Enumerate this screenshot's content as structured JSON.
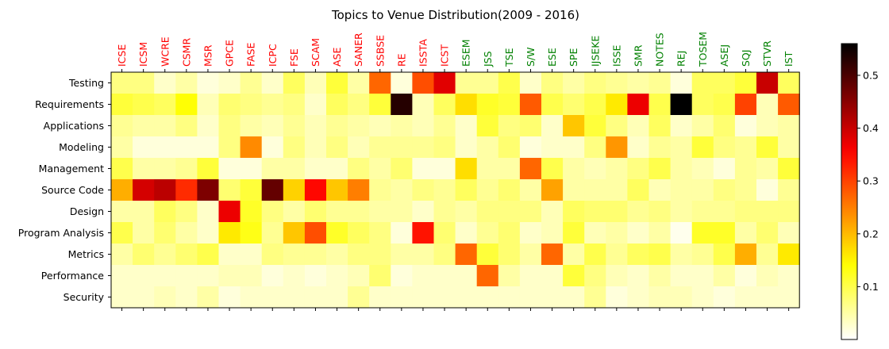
{
  "chart_data": {
    "type": "heatmap",
    "title": "Topics to Venue Distribution(2009 - 2016)",
    "columns": [
      "ICSE",
      "ICSM",
      "WCRE",
      "CSMR",
      "MSR",
      "GPCE",
      "FASE",
      "ICPC",
      "FSE",
      "SCAM",
      "ASE",
      "SANER",
      "SSBSE",
      "RE",
      "ISSTA",
      "ICST",
      "ESEM",
      "JSS",
      "TSE",
      "S/W",
      "ESE",
      "SPE",
      "IJSEKE",
      "ISSE",
      "SMR",
      "NOTES",
      "REJ",
      "TOSEM",
      "ASEJ",
      "SQJ",
      "STVR",
      "IST"
    ],
    "column_colors": [
      "#ff0000",
      "#ff0000",
      "#ff0000",
      "#ff0000",
      "#ff0000",
      "#ff0000",
      "#ff0000",
      "#ff0000",
      "#ff0000",
      "#ff0000",
      "#ff0000",
      "#ff0000",
      "#ff0000",
      "#ff0000",
      "#ff0000",
      "#ff0000",
      "#008000",
      "#008000",
      "#008000",
      "#008000",
      "#008000",
      "#008000",
      "#008000",
      "#008000",
      "#008000",
      "#008000",
      "#008000",
      "#008000",
      "#008000",
      "#008000",
      "#008000",
      "#008000"
    ],
    "rows": [
      "Testing",
      "Requirements",
      "Applications",
      "Modeling",
      "Management",
      "Source Code",
      "Design",
      "Program Analysis",
      "Metrics",
      "Performance",
      "Security"
    ],
    "values": [
      [
        0.07,
        0.07,
        0.03,
        0.05,
        0.02,
        0.03,
        0.06,
        0.03,
        0.09,
        0.04,
        0.11,
        0.05,
        0.27,
        0.02,
        0.29,
        0.38,
        0.06,
        0.06,
        0.1,
        0.03,
        0.07,
        0.05,
        0.07,
        0.06,
        0.05,
        0.06,
        0.02,
        0.09,
        0.09,
        0.11,
        0.4,
        0.09
      ],
      [
        0.11,
        0.1,
        0.09,
        0.14,
        0.04,
        0.08,
        0.07,
        0.06,
        0.07,
        0.03,
        0.09,
        0.07,
        0.11,
        0.53,
        0.04,
        0.09,
        0.17,
        0.12,
        0.11,
        0.28,
        0.1,
        0.08,
        0.1,
        0.16,
        0.37,
        0.1,
        0.56,
        0.09,
        0.1,
        0.3,
        0.04,
        0.28
      ],
      [
        0.06,
        0.05,
        0.05,
        0.07,
        0.03,
        0.07,
        0.05,
        0.04,
        0.06,
        0.04,
        0.06,
        0.05,
        0.04,
        0.05,
        0.04,
        0.06,
        0.03,
        0.11,
        0.07,
        0.08,
        0.03,
        0.19,
        0.11,
        0.07,
        0.04,
        0.09,
        0.03,
        0.05,
        0.08,
        0.02,
        0.04,
        0.05
      ],
      [
        0.05,
        0.02,
        0.02,
        0.02,
        0.02,
        0.07,
        0.24,
        0.02,
        0.07,
        0.04,
        0.07,
        0.04,
        0.06,
        0.06,
        0.06,
        0.07,
        0.03,
        0.05,
        0.08,
        0.02,
        0.03,
        0.03,
        0.07,
        0.23,
        0.03,
        0.06,
        0.05,
        0.11,
        0.07,
        0.06,
        0.11,
        0.05
      ],
      [
        0.1,
        0.05,
        0.05,
        0.06,
        0.11,
        0.02,
        0.02,
        0.05,
        0.05,
        0.03,
        0.03,
        0.07,
        0.05,
        0.08,
        0.02,
        0.02,
        0.17,
        0.05,
        0.05,
        0.27,
        0.1,
        0.05,
        0.04,
        0.05,
        0.07,
        0.1,
        0.05,
        0.04,
        0.02,
        0.06,
        0.05,
        0.11
      ],
      [
        0.21,
        0.39,
        0.41,
        0.32,
        0.46,
        0.08,
        0.11,
        0.48,
        0.18,
        0.35,
        0.19,
        0.25,
        0.06,
        0.05,
        0.07,
        0.06,
        0.09,
        0.06,
        0.08,
        0.05,
        0.22,
        0.05,
        0.05,
        0.05,
        0.09,
        0.04,
        0.05,
        0.05,
        0.07,
        0.06,
        0.02,
        0.06
      ],
      [
        0.05,
        0.05,
        0.09,
        0.07,
        0.03,
        0.37,
        0.12,
        0.07,
        0.05,
        0.08,
        0.06,
        0.06,
        0.05,
        0.05,
        0.03,
        0.06,
        0.05,
        0.07,
        0.07,
        0.07,
        0.04,
        0.09,
        0.08,
        0.08,
        0.06,
        0.07,
        0.05,
        0.06,
        0.06,
        0.07,
        0.07,
        0.07
      ],
      [
        0.1,
        0.05,
        0.08,
        0.05,
        0.03,
        0.16,
        0.13,
        0.06,
        0.19,
        0.29,
        0.12,
        0.09,
        0.07,
        0.02,
        0.34,
        0.08,
        0.03,
        0.06,
        0.08,
        0.03,
        0.04,
        0.11,
        0.04,
        0.05,
        0.03,
        0.05,
        0.01,
        0.12,
        0.12,
        0.05,
        0.08,
        0.04
      ],
      [
        0.05,
        0.08,
        0.06,
        0.08,
        0.1,
        0.03,
        0.03,
        0.07,
        0.06,
        0.06,
        0.05,
        0.07,
        0.07,
        0.05,
        0.05,
        0.07,
        0.27,
        0.11,
        0.08,
        0.05,
        0.27,
        0.05,
        0.1,
        0.06,
        0.09,
        0.1,
        0.05,
        0.06,
        0.1,
        0.21,
        0.06,
        0.16
      ],
      [
        0.03,
        0.03,
        0.03,
        0.03,
        0.03,
        0.04,
        0.04,
        0.02,
        0.03,
        0.02,
        0.03,
        0.04,
        0.08,
        0.02,
        0.03,
        0.03,
        0.03,
        0.27,
        0.05,
        0.03,
        0.03,
        0.11,
        0.07,
        0.04,
        0.03,
        0.05,
        0.03,
        0.03,
        0.05,
        0.02,
        0.04,
        0.03
      ],
      [
        0.03,
        0.03,
        0.04,
        0.03,
        0.05,
        0.02,
        0.03,
        0.03,
        0.03,
        0.03,
        0.03,
        0.06,
        0.03,
        0.03,
        0.03,
        0.03,
        0.03,
        0.03,
        0.03,
        0.03,
        0.03,
        0.03,
        0.06,
        0.02,
        0.03,
        0.04,
        0.04,
        0.03,
        0.02,
        0.03,
        0.03,
        0.03
      ]
    ],
    "colormap": "hot_r",
    "vmin": 0.0,
    "vmax": 0.56,
    "colorbar_ticks": [
      0.1,
      0.2,
      0.3,
      0.4,
      0.5
    ],
    "colorbar_tick_labels": [
      "0.1",
      "0.2",
      "0.3",
      "0.4",
      "0.5"
    ],
    "grid": false
  }
}
